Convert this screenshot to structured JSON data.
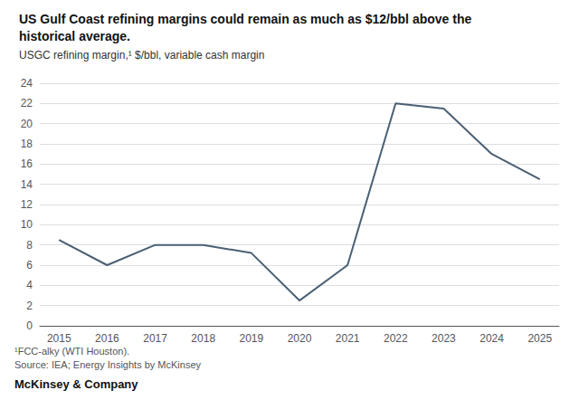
{
  "chart_data": {
    "type": "line",
    "title": "US Gulf Coast refining margins could remain as much as $12/bbl above the\nhistorical average.",
    "subtitle": "USGC refining margin,¹ $/bbl, variable cash margin",
    "annotations": [
      "¹FCC-alky (WTI Houston).",
      "Source: IEA; Energy Insights by McKinsey",
      "McKinsey & Company"
    ],
    "x": [
      2015,
      2016,
      2017,
      2018,
      2019,
      2020,
      2021,
      2022,
      2023,
      2024,
      2025
    ],
    "values": [
      8.5,
      6.0,
      8.0,
      8.0,
      7.2,
      2.5,
      6.0,
      22.0,
      21.5,
      17.0,
      14.5
    ],
    "color": "#4a5f73",
    "xlim": [
      2014.6,
      2025.4
    ],
    "xticks": [
      2015,
      2016,
      2017,
      2018,
      2019,
      2020,
      2021,
      2022,
      2023,
      2024,
      2025
    ],
    "ylim": [
      0,
      24
    ],
    "yticks": [
      0,
      2,
      4,
      6,
      8,
      10,
      12,
      14,
      16,
      18,
      20,
      22,
      24
    ],
    "grid": true
  }
}
